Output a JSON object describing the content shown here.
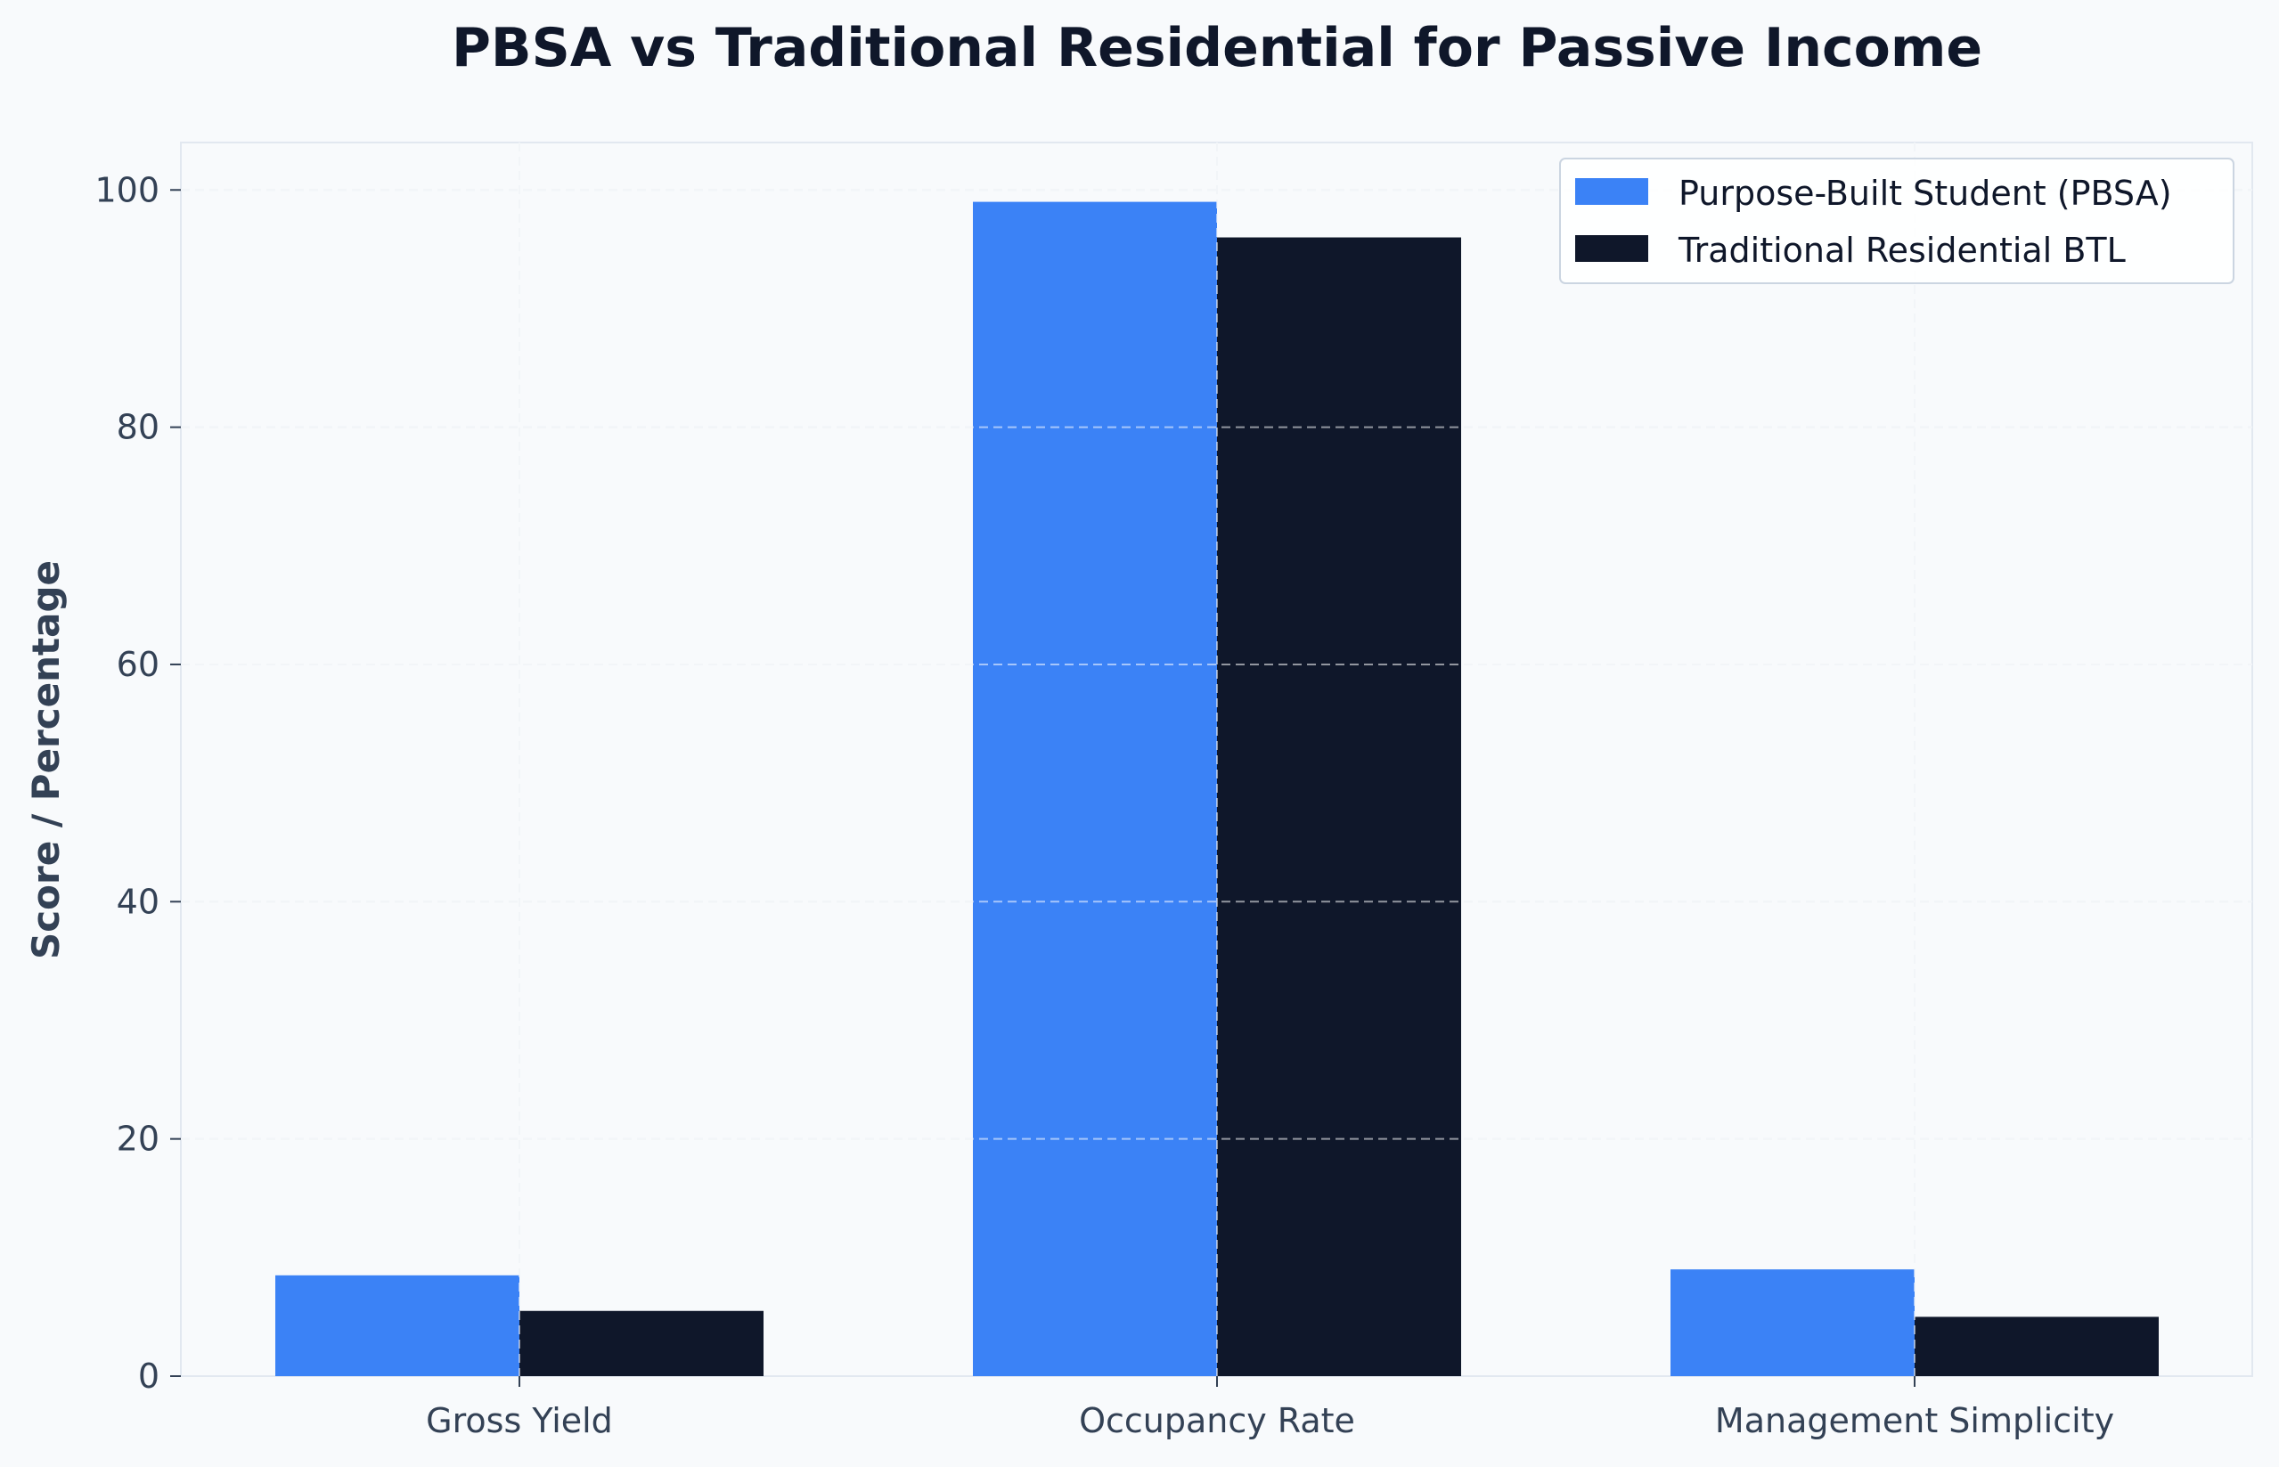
{
  "chart_data": {
    "type": "bar",
    "title": "PBSA vs Traditional Residential for Passive Income",
    "xlabel": "",
    "ylabel": "Score / Percentage",
    "categories": [
      "Gross Yield",
      "Occupancy Rate",
      "Management Simplicity"
    ],
    "series": [
      {
        "name": "Purpose-Built Student (PBSA)",
        "values": [
          8.5,
          99,
          9
        ],
        "color": "#3b82f6"
      },
      {
        "name": "Traditional Residential BTL",
        "values": [
          5.5,
          96,
          5
        ],
        "color": "#0f172a"
      }
    ],
    "ylim": [
      0,
      104
    ],
    "yticks": [
      0,
      20,
      40,
      60,
      80,
      100
    ],
    "grid": true,
    "legend": "top-right"
  },
  "colors": {
    "background": "#f8fafc",
    "grid": "#e2e8f0",
    "axis": "#e2e8f0",
    "text": "#334155",
    "title": "#0f172a"
  }
}
